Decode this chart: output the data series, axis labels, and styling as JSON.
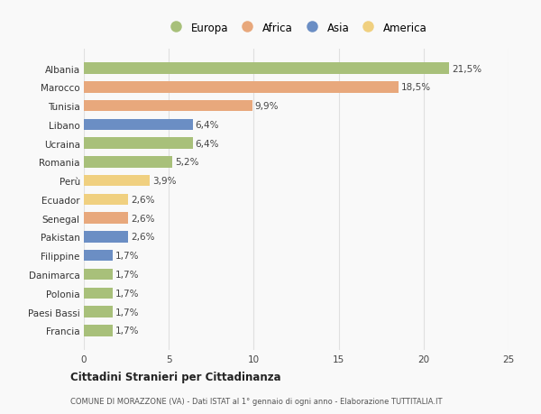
{
  "countries": [
    "Albania",
    "Marocco",
    "Tunisia",
    "Libano",
    "Ucraina",
    "Romania",
    "Perù",
    "Ecuador",
    "Senegal",
    "Pakistan",
    "Filippine",
    "Danimarca",
    "Polonia",
    "Paesi Bassi",
    "Francia"
  ],
  "values": [
    21.5,
    18.5,
    9.9,
    6.4,
    6.4,
    5.2,
    3.9,
    2.6,
    2.6,
    2.6,
    1.7,
    1.7,
    1.7,
    1.7,
    1.7
  ],
  "labels": [
    "21,5%",
    "18,5%",
    "9,9%",
    "6,4%",
    "6,4%",
    "5,2%",
    "3,9%",
    "2,6%",
    "2,6%",
    "2,6%",
    "1,7%",
    "1,7%",
    "1,7%",
    "1,7%",
    "1,7%"
  ],
  "continents": [
    "Europa",
    "Africa",
    "Africa",
    "Asia",
    "Europa",
    "Europa",
    "America",
    "America",
    "Africa",
    "Asia",
    "Asia",
    "Europa",
    "Europa",
    "Europa",
    "Europa"
  ],
  "colors": {
    "Europa": "#a8c07a",
    "Africa": "#e8a87c",
    "Asia": "#6b8ec4",
    "America": "#f0d080"
  },
  "legend_order": [
    "Europa",
    "Africa",
    "Asia",
    "America"
  ],
  "xlim": [
    0,
    25
  ],
  "xticks": [
    0,
    5,
    10,
    15,
    20,
    25
  ],
  "title": "Cittadini Stranieri per Cittadinanza",
  "subtitle": "COMUNE DI MORAZZONE (VA) - Dati ISTAT al 1° gennaio di ogni anno - Elaborazione TUTTITALIA.IT",
  "background_color": "#f9f9f9",
  "bar_height": 0.6,
  "grid_color": "#e0e0e0"
}
